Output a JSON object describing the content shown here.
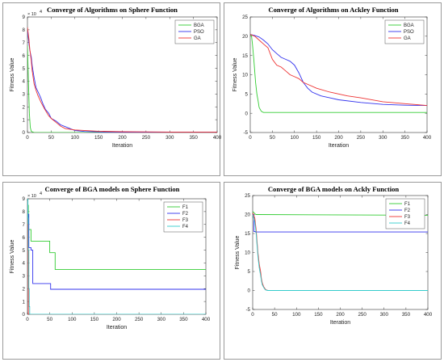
{
  "chart_data": [
    {
      "type": "line",
      "title": "Converge of Algorithms on Sphere Function",
      "xlabel": "Iteration",
      "ylabel": "Fitness Value",
      "y_multiplier": "× 10",
      "y_exponent": "4",
      "xlim": [
        0,
        400
      ],
      "ylim": [
        0,
        9
      ],
      "xticks": [
        0,
        50,
        100,
        150,
        200,
        250,
        300,
        350,
        400
      ],
      "yticks": [
        0,
        1,
        2,
        3,
        4,
        5,
        6,
        7,
        8,
        9
      ],
      "legend_position": "top-right",
      "series": [
        {
          "name": "BGA",
          "color": "#33cc33",
          "x": [
            0,
            2,
            4,
            6,
            8,
            10,
            15,
            400
          ],
          "y": [
            6.8,
            4.0,
            1.5,
            0.4,
            0.1,
            0.05,
            0.0,
            0.0
          ]
        },
        {
          "name": "PSO",
          "color": "#3333ee",
          "x": [
            0,
            3,
            5,
            8,
            10,
            14,
            18,
            22,
            28,
            32,
            38,
            45,
            50,
            60,
            70,
            80,
            90,
            100,
            120,
            150,
            200,
            250,
            300,
            400
          ],
          "y": [
            8.0,
            7.0,
            6.4,
            5.9,
            5.2,
            4.3,
            3.5,
            3.2,
            2.7,
            2.3,
            1.8,
            1.5,
            1.1,
            0.9,
            0.6,
            0.45,
            0.3,
            0.15,
            0.08,
            0.05,
            0.03,
            0.02,
            0.02,
            0.02
          ]
        },
        {
          "name": "GA",
          "color": "#ee3333",
          "x": [
            0,
            3,
            5,
            8,
            10,
            14,
            18,
            22,
            28,
            35,
            40,
            45,
            50,
            55,
            60,
            70,
            80,
            100,
            150,
            200,
            250,
            300,
            400
          ],
          "y": [
            8.2,
            7.3,
            6.5,
            5.6,
            4.8,
            3.8,
            3.3,
            2.9,
            2.4,
            1.9,
            1.6,
            1.3,
            1.1,
            0.95,
            0.8,
            0.5,
            0.3,
            0.2,
            0.1,
            0.06,
            0.05,
            0.04,
            0.04
          ]
        }
      ]
    },
    {
      "type": "line",
      "title": "Converge of Algorithms on Ackley Function",
      "xlabel": "Iteration",
      "ylabel": "Fitness Value",
      "xlim": [
        0,
        400
      ],
      "ylim": [
        -5,
        25
      ],
      "xticks": [
        0,
        50,
        100,
        150,
        200,
        250,
        300,
        350,
        400
      ],
      "yticks": [
        -5,
        0,
        5,
        10,
        15,
        20,
        25
      ],
      "legend_position": "top-right",
      "series": [
        {
          "name": "BGA",
          "color": "#33cc33",
          "x": [
            0,
            3,
            5,
            8,
            10,
            12,
            15,
            18,
            20,
            25,
            30,
            400
          ],
          "y": [
            20.6,
            20.0,
            18.0,
            14.0,
            11.0,
            8.0,
            5.0,
            3.0,
            1.5,
            0.5,
            0.2,
            0.2
          ]
        },
        {
          "name": "PSO",
          "color": "#3333ee",
          "x": [
            0,
            10,
            20,
            30,
            40,
            50,
            60,
            70,
            80,
            90,
            100,
            110,
            120,
            130,
            140,
            160,
            180,
            200,
            250,
            300,
            350,
            400
          ],
          "y": [
            20.5,
            20.2,
            19.8,
            19.0,
            18.0,
            16.5,
            15.5,
            14.5,
            14.0,
            13.5,
            12.5,
            10.5,
            8.0,
            6.5,
            5.5,
            4.5,
            4.0,
            3.5,
            2.8,
            2.3,
            2.1,
            2.0
          ]
        },
        {
          "name": "GA",
          "color": "#ee3333",
          "x": [
            0,
            10,
            20,
            30,
            40,
            50,
            60,
            70,
            80,
            90,
            100,
            110,
            120,
            130,
            150,
            180,
            200,
            220,
            250,
            300,
            350,
            400
          ],
          "y": [
            20.5,
            20.0,
            19.0,
            18.0,
            17.0,
            14.0,
            12.5,
            12.0,
            11.0,
            10.0,
            9.5,
            9.0,
            8.0,
            7.5,
            6.5,
            5.5,
            5.0,
            4.5,
            4.0,
            3.0,
            2.5,
            2.0
          ]
        }
      ]
    },
    {
      "type": "line",
      "title": "Converge of BGA models on Sphere Function",
      "xlabel": "Iteration",
      "ylabel": "Fitness Value",
      "y_multiplier": "× 10",
      "y_exponent": "4",
      "xlim": [
        0,
        400
      ],
      "ylim": [
        0,
        9
      ],
      "xticks": [
        0,
        50,
        100,
        150,
        200,
        250,
        300,
        350,
        400
      ],
      "yticks": [
        0,
        1,
        2,
        3,
        4,
        5,
        6,
        7,
        8,
        9
      ],
      "legend_position": "top-right",
      "series": [
        {
          "name": "F1",
          "color": "#33cc33",
          "x": [
            0,
            2,
            2,
            8,
            8,
            50,
            50,
            62,
            62,
            400
          ],
          "y": [
            8.5,
            8.5,
            6.6,
            6.6,
            5.7,
            5.7,
            4.8,
            4.8,
            3.5,
            3.5
          ]
        },
        {
          "name": "F2",
          "color": "#3333ee",
          "x": [
            0,
            3,
            3,
            8,
            8,
            12,
            12,
            52,
            52,
            400
          ],
          "y": [
            7.8,
            7.8,
            5.2,
            5.2,
            5.0,
            5.0,
            2.4,
            2.4,
            1.95,
            1.95
          ]
        },
        {
          "name": "F3",
          "color": "#ee3333",
          "x": [
            0,
            1,
            1,
            2,
            2,
            400
          ],
          "y": [
            7.0,
            7.0,
            5.0,
            5.0,
            0.0,
            0.0
          ]
        },
        {
          "name": "F4",
          "color": "#33cccc",
          "x": [
            0,
            1,
            1,
            2,
            2,
            3,
            3,
            4,
            4,
            5,
            5,
            400
          ],
          "y": [
            9.0,
            9.0,
            7.5,
            7.5,
            5.0,
            5.0,
            2.0,
            2.0,
            0.6,
            0.6,
            0.0,
            0.0
          ]
        }
      ]
    },
    {
      "type": "line",
      "title": "Converge of BGA models on Ackly Function",
      "xlabel": "Iteration",
      "ylabel": "Fitness Value",
      "xlim": [
        0,
        400
      ],
      "ylim": [
        -5,
        25
      ],
      "xticks": [
        0,
        50,
        100,
        150,
        200,
        250,
        300,
        350,
        400
      ],
      "yticks": [
        -5,
        0,
        5,
        10,
        15,
        20,
        25
      ],
      "legend_position": "top-right",
      "series": [
        {
          "name": "F1",
          "color": "#33cc33",
          "x": [
            0,
            3,
            5,
            8,
            10,
            400
          ],
          "y": [
            20.8,
            20.5,
            20.2,
            20.0,
            20.0,
            19.8
          ]
        },
        {
          "name": "F2",
          "color": "#3333ee",
          "x": [
            0,
            3,
            3,
            6,
            6,
            400
          ],
          "y": [
            20.0,
            20.0,
            15.5,
            15.5,
            15.4,
            15.4
          ]
        },
        {
          "name": "F3",
          "color": "#ee3333",
          "x": [
            0,
            5,
            8,
            10,
            12,
            15,
            18,
            20,
            22,
            25,
            28,
            30,
            35,
            400
          ],
          "y": [
            20.5,
            19.0,
            16.0,
            13.0,
            10.0,
            7.0,
            5.0,
            3.0,
            2.0,
            1.0,
            0.5,
            0.2,
            0.0,
            0.0
          ]
        },
        {
          "name": "F4",
          "color": "#33cccc",
          "x": [
            0,
            5,
            8,
            10,
            12,
            15,
            18,
            20,
            22,
            25,
            28,
            30,
            35,
            400
          ],
          "y": [
            20.0,
            18.0,
            15.0,
            12.0,
            9.0,
            6.0,
            4.0,
            2.5,
            1.5,
            0.8,
            0.3,
            0.1,
            0.0,
            0.0
          ]
        }
      ]
    }
  ]
}
